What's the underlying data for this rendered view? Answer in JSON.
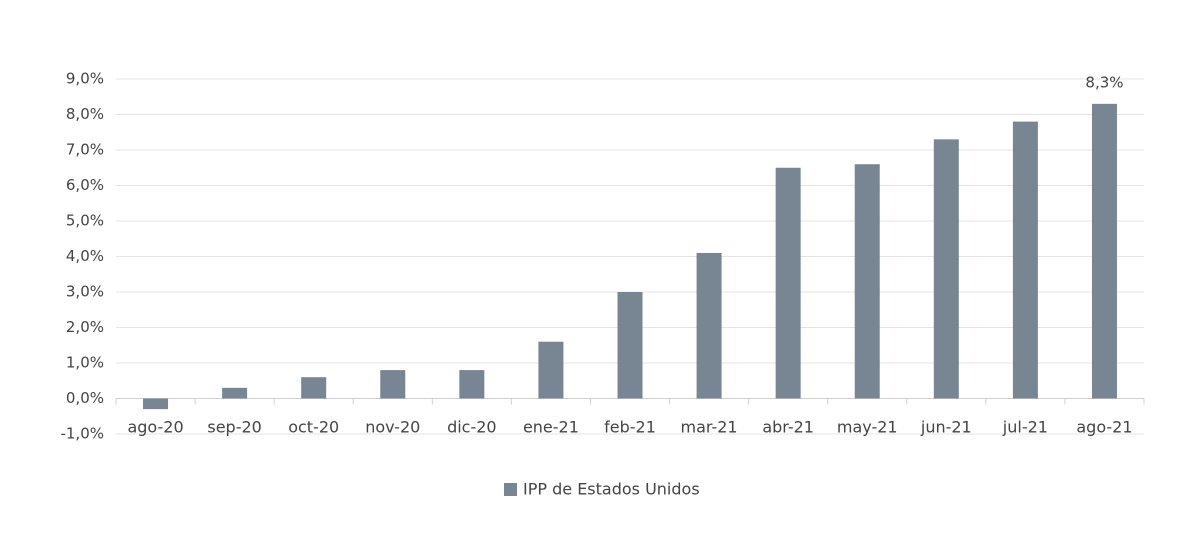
{
  "chart_data": {
    "type": "bar",
    "categories": [
      "ago-20",
      "sep-20",
      "oct-20",
      "nov-20",
      "dic-20",
      "ene-21",
      "feb-21",
      "mar-21",
      "abr-21",
      "may-21",
      "jun-21",
      "jul-21",
      "ago-21"
    ],
    "series": [
      {
        "name": "IPP de Estados Unidos",
        "color": "#778692",
        "values": [
          -0.3,
          0.3,
          0.6,
          0.8,
          0.8,
          1.6,
          3.0,
          4.1,
          6.5,
          6.6,
          7.3,
          7.8,
          8.3
        ],
        "value_labels": [
          null,
          null,
          null,
          null,
          null,
          null,
          null,
          null,
          null,
          null,
          null,
          null,
          "8,3%"
        ]
      }
    ],
    "ylim": [
      -1,
      9
    ],
    "yticks": [
      {
        "value": -1,
        "label": "-1,0%"
      },
      {
        "value": 0,
        "label": "0,0%"
      },
      {
        "value": 1,
        "label": "1,0%"
      },
      {
        "value": 2,
        "label": "2,0%"
      },
      {
        "value": 3,
        "label": "3,0%"
      },
      {
        "value": 4,
        "label": "4,0%"
      },
      {
        "value": 5,
        "label": "5,0%"
      },
      {
        "value": 6,
        "label": "6,0%"
      },
      {
        "value": 7,
        "label": "7,0%"
      },
      {
        "value": 8,
        "label": "8,0%"
      },
      {
        "value": 9,
        "label": "9,0%"
      }
    ],
    "grid": true,
    "legend": "bottom"
  }
}
